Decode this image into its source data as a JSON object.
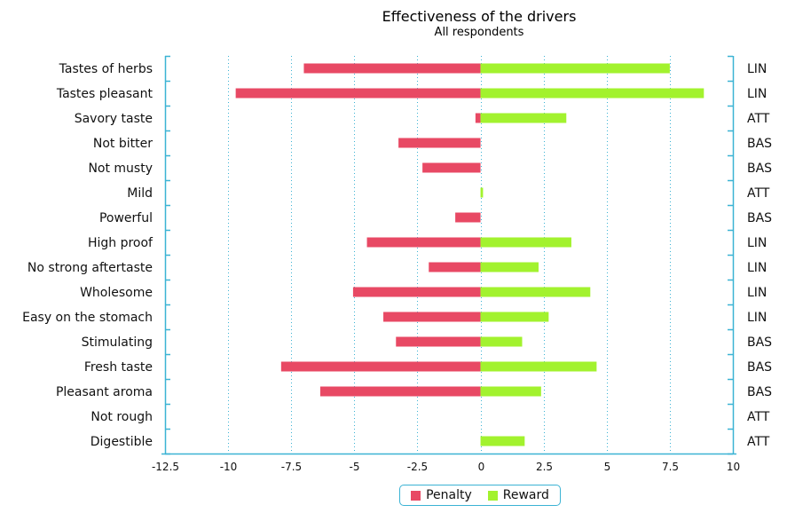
{
  "chart_data": {
    "type": "bar",
    "orientation": "horizontal",
    "stacked": "diverging",
    "title": "Effectiveness of the drivers",
    "subtitle": "All respondents",
    "xlabel": "",
    "ylabel": "",
    "xlim": [
      -12.5,
      10
    ],
    "xticks": [
      -12.5,
      -10,
      -7.5,
      -5,
      -2.5,
      0,
      2.5,
      5,
      7.5,
      10
    ],
    "xtick_labels": [
      "-12.5",
      "-10",
      "-7.5",
      "-5",
      "-2.5",
      "0",
      "2.5",
      "5",
      "7.5",
      "10"
    ],
    "grid": "vertical dotted",
    "categories": [
      "Tastes of herbs",
      "Tastes pleasant",
      "Savory taste",
      "Not bitter",
      "Not musty",
      "Mild",
      "Powerful",
      "High proof",
      "No strong aftertaste",
      "Wholesome",
      "Easy on the stomach",
      "Stimulating",
      "Fresh taste",
      "Pleasant aroma",
      "Not rough",
      "Digestible"
    ],
    "groups": [
      "LIN",
      "LIN",
      "ATT",
      "BAS",
      "BAS",
      "ATT",
      "BAS",
      "LIN",
      "LIN",
      "LIN",
      "LIN",
      "BAS",
      "BAS",
      "BAS",
      "ATT",
      "ATT"
    ],
    "series": [
      {
        "name": "Penalty",
        "color": "#e84964",
        "values": [
          -7.0,
          -9.7,
          -0.2,
          -3.25,
          -2.3,
          0,
          -1.0,
          -4.5,
          -2.05,
          -5.05,
          -3.85,
          -3.35,
          -7.9,
          -6.35,
          0,
          0
        ]
      },
      {
        "name": "Reward",
        "color": "#a2f22e",
        "values": [
          7.5,
          8.85,
          3.4,
          0,
          0,
          0.1,
          0,
          3.6,
          2.3,
          4.35,
          2.7,
          1.65,
          4.6,
          2.4,
          0,
          1.75
        ]
      }
    ],
    "legend": {
      "position": "bottom-center",
      "entries": [
        "Penalty",
        "Reward"
      ]
    },
    "axis_color": "#3bb3d4"
  }
}
